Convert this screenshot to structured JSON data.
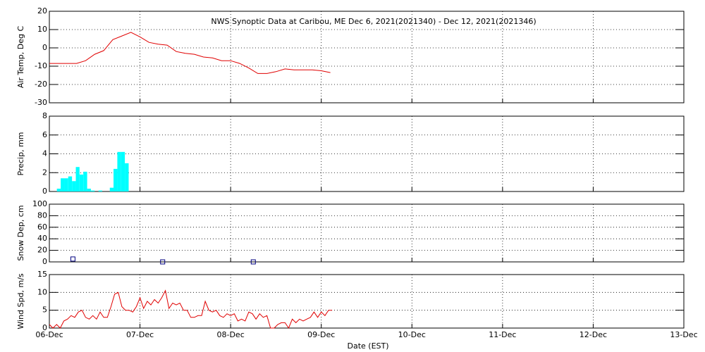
{
  "chart_data": [
    {
      "type": "line",
      "title": "NWS Synoptic Data at Caribou, ME   Dec  6, 2021(2021340) - Dec 12, 2021(2021346)",
      "ylabel": "Air Temp, Deg C",
      "color": "#e00000",
      "ylim": [
        -30,
        20
      ],
      "yticks": [
        -30,
        -20,
        -10,
        0,
        10,
        20
      ],
      "grid": true,
      "x": [
        0,
        0.1,
        0.2,
        0.3,
        0.4,
        0.5,
        0.6,
        0.7,
        0.8,
        0.9,
        1.0,
        1.1,
        1.2,
        1.3,
        1.4,
        1.5,
        1.6,
        1.7,
        1.8,
        1.9,
        2.0,
        2.1,
        2.2,
        2.3,
        2.4,
        2.5,
        2.6,
        2.7,
        2.8,
        2.9,
        3.0,
        3.1
      ],
      "values": [
        -8.5,
        -8.5,
        -8.5,
        -8.5,
        -7,
        -3.5,
        -1.5,
        4.5,
        6.5,
        8.5,
        6,
        3,
        2,
        1.5,
        -2,
        -3,
        -3.5,
        -5,
        -5.5,
        -7,
        -7,
        -8.5,
        -11,
        -14,
        -14,
        -13,
        -11.5,
        -12,
        -12,
        -12,
        -12.5,
        -13.5
      ]
    },
    {
      "type": "histogram",
      "ylabel": "Precip, mm",
      "color": "#00ffff",
      "ylim": [
        0,
        8
      ],
      "yticks": [
        0,
        2,
        4,
        6,
        8
      ],
      "grid": true,
      "bins": [
        0.083,
        0.125,
        0.167,
        0.208,
        0.25,
        0.292,
        0.333,
        0.375,
        0.417,
        0.458,
        0.5,
        0.542,
        0.583,
        0.625,
        0.667,
        0.708,
        0.75,
        0.792,
        0.833,
        0.875,
        0.917
      ],
      "values": [
        0.3,
        1.4,
        1.4,
        1.6,
        1.1,
        2.6,
        1.8,
        2.1,
        0.3,
        0.1,
        0,
        0.1,
        0,
        0,
        0.4,
        2.4,
        4.2,
        4.2,
        3.0,
        0
      ]
    },
    {
      "type": "scatter",
      "ylabel": "Snow Dep, cm",
      "color": "#000080",
      "ylim": [
        0,
        100
      ],
      "yticks": [
        0,
        20,
        40,
        60,
        80,
        100
      ],
      "grid": true,
      "x": [
        0.26,
        1.25,
        2.25
      ],
      "values": [
        5,
        0,
        0
      ]
    },
    {
      "type": "line",
      "ylabel": "Wind Spd, m/s",
      "xlabel": "Date (EST)",
      "color": "#e00000",
      "ylim": [
        0,
        15
      ],
      "yticks": [
        0,
        5,
        10,
        15
      ],
      "grid": true,
      "xlim": [
        0,
        7
      ],
      "xticks": [
        {
          "value": 0,
          "label": "06-Dec"
        },
        {
          "value": 1,
          "label": "07-Dec"
        },
        {
          "value": 2,
          "label": "08-Dec"
        },
        {
          "value": 3,
          "label": "09-Dec"
        },
        {
          "value": 4,
          "label": "10-Dec"
        },
        {
          "value": 5,
          "label": "11-Dec"
        },
        {
          "value": 6,
          "label": "12-Dec"
        },
        {
          "value": 7,
          "label": "13-Dec"
        }
      ],
      "x": [
        0,
        0.04,
        0.08,
        0.12,
        0.16,
        0.2,
        0.24,
        0.28,
        0.32,
        0.36,
        0.4,
        0.44,
        0.48,
        0.52,
        0.56,
        0.6,
        0.64,
        0.68,
        0.72,
        0.76,
        0.8,
        0.84,
        0.88,
        0.92,
        0.96,
        1.0,
        1.04,
        1.08,
        1.12,
        1.16,
        1.2,
        1.24,
        1.28,
        1.32,
        1.36,
        1.4,
        1.44,
        1.48,
        1.52,
        1.56,
        1.6,
        1.64,
        1.68,
        1.72,
        1.76,
        1.8,
        1.84,
        1.88,
        1.92,
        1.96,
        2.0,
        2.04,
        2.08,
        2.12,
        2.16,
        2.2,
        2.24,
        2.28,
        2.32,
        2.36,
        2.4,
        2.44,
        2.48,
        2.52,
        2.56,
        2.6,
        2.64,
        2.68,
        2.72,
        2.76,
        2.8,
        2.84,
        2.88,
        2.92,
        2.96,
        3.0,
        3.04,
        3.08,
        3.12
      ],
      "values": [
        1,
        0,
        1,
        0,
        2,
        2.5,
        3.5,
        3,
        4.5,
        5,
        3,
        2.5,
        3.5,
        2.5,
        4.5,
        3,
        3,
        6,
        9.5,
        10,
        6,
        5,
        5,
        4.5,
        6,
        8.5,
        5.5,
        7.5,
        6.5,
        8,
        7,
        8.5,
        10.5,
        5.5,
        7,
        6.5,
        7,
        5,
        5,
        3,
        3,
        3.5,
        3.5,
        7.5,
        5,
        4.5,
        5,
        3.5,
        3,
        4,
        3.5,
        4,
        2,
        2.5,
        2,
        4.5,
        4,
        2.5,
        4,
        3,
        3.5,
        0,
        0,
        1,
        1.5,
        1.5,
        0,
        2.5,
        1.5,
        2.5,
        2,
        2.5,
        3,
        4.5,
        3,
        4.5,
        3.5,
        5,
        5
      ]
    }
  ]
}
